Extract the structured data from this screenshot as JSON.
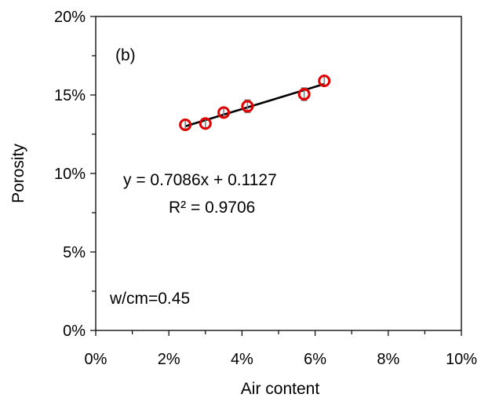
{
  "chart_data": {
    "type": "scatter",
    "title": "",
    "xlabel": "Air content",
    "ylabel": "Porosity",
    "xlim": [
      0,
      0.1
    ],
    "ylim": [
      0,
      0.2
    ],
    "x_ticks": [
      0,
      0.02,
      0.04,
      0.06,
      0.08,
      0.1
    ],
    "x_tick_labels": [
      "0%",
      "2%",
      "4%",
      "6%",
      "8%",
      "10%"
    ],
    "y_ticks": [
      0,
      0.05,
      0.1,
      0.15,
      0.2
    ],
    "y_tick_labels": [
      "0%",
      "5%",
      "10%",
      "15%",
      "20%"
    ],
    "grid": false,
    "series": [
      {
        "marker": "circle-open",
        "color": "#e00000",
        "x": [
          0.0245,
          0.03,
          0.035,
          0.0415,
          0.057,
          0.0625
        ],
        "y": [
          0.131,
          0.1318,
          0.1388,
          0.1428,
          0.1505,
          0.159
        ],
        "error": [
          0.003,
          0.003,
          0.003,
          0.004,
          0.004,
          0.003
        ]
      }
    ],
    "trendline": {
      "type": "linear",
      "slope": 0.7086,
      "intercept": 0.1127,
      "x_range": [
        0.0245,
        0.0625
      ],
      "color": "#000000"
    },
    "annotations": {
      "panel": "(b)",
      "equation": "y = 0.7086x + 0.1127",
      "r_squared": "R² = 0.9706",
      "condition": "w/cm=0.45"
    }
  }
}
